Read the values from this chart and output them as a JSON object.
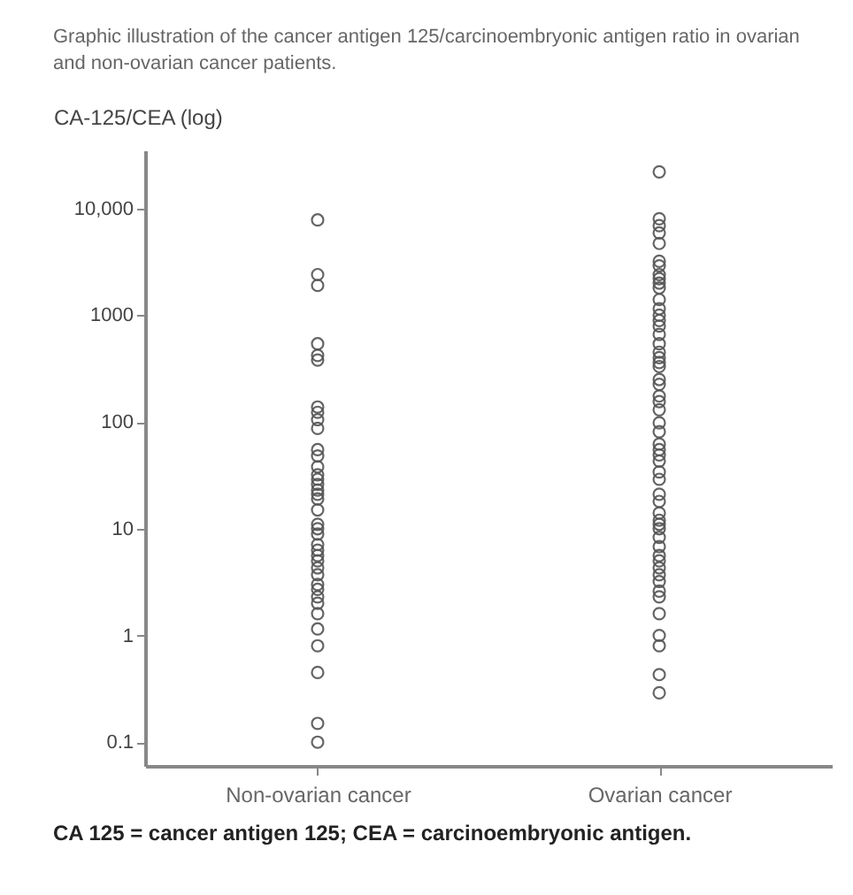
{
  "chart_data": {
    "type": "scatter",
    "title": "Graphic illustration of the cancer antigen 125/carcinoembryonic antigen ratio in ovarian and non-ovarian cancer patients.",
    "ylabel": "CA-125/CEA (log)",
    "annotations": [
      "CA 125 = cancer antigen 125;  CEA = carcinoembryonic antigen."
    ],
    "log": "y",
    "marker": "circle",
    "categories": [
      "Non-ovarian cancer",
      "Ovarian cancer"
    ],
    "ylim": [
      0.06,
      35000
    ],
    "yticks": [
      0.1,
      1,
      10,
      100,
      1000,
      {
        "value": 10000,
        "label": "10,000"
      }
    ],
    "series": [
      {
        "color": "#555555",
        "x": [
          "Non-ovarian cancer",
          "Non-ovarian cancer",
          "Non-ovarian cancer",
          "Non-ovarian cancer",
          "Non-ovarian cancer",
          "Non-ovarian cancer",
          "Non-ovarian cancer",
          "Non-ovarian cancer",
          "Non-ovarian cancer",
          "Non-ovarian cancer",
          "Non-ovarian cancer",
          "Non-ovarian cancer",
          "Non-ovarian cancer",
          "Non-ovarian cancer",
          "Non-ovarian cancer",
          "Non-ovarian cancer",
          "Non-ovarian cancer",
          "Non-ovarian cancer",
          "Non-ovarian cancer",
          "Non-ovarian cancer",
          "Non-ovarian cancer",
          "Non-ovarian cancer",
          "Non-ovarian cancer",
          "Non-ovarian cancer",
          "Non-ovarian cancer",
          "Non-ovarian cancer",
          "Non-ovarian cancer",
          "Non-ovarian cancer",
          "Non-ovarian cancer",
          "Non-ovarian cancer",
          "Non-ovarian cancer",
          "Non-ovarian cancer",
          "Non-ovarian cancer",
          "Non-ovarian cancer",
          "Non-ovarian cancer",
          "Non-ovarian cancer",
          "Non-ovarian cancer",
          "Non-ovarian cancer",
          "Non-ovarian cancer"
        ],
        "values": [
          7800,
          2400,
          1900,
          540,
          420,
          380,
          138,
          123,
          105,
          87,
          55,
          48,
          38,
          32,
          29,
          26,
          23,
          21,
          19,
          15,
          11,
          10,
          8.9,
          7.1,
          6.3,
          5.6,
          5.0,
          4.3,
          3.7,
          3.0,
          2.7,
          2.3,
          2.0,
          1.6,
          1.15,
          0.8,
          0.45,
          0.15,
          0.1
        ]
      },
      {
        "color": "#555555",
        "x": [
          "Ovarian cancer",
          "Ovarian cancer",
          "Ovarian cancer",
          "Ovarian cancer",
          "Ovarian cancer",
          "Ovarian cancer",
          "Ovarian cancer",
          "Ovarian cancer",
          "Ovarian cancer",
          "Ovarian cancer",
          "Ovarian cancer",
          "Ovarian cancer",
          "Ovarian cancer",
          "Ovarian cancer",
          "Ovarian cancer",
          "Ovarian cancer",
          "Ovarian cancer",
          "Ovarian cancer",
          "Ovarian cancer",
          "Ovarian cancer",
          "Ovarian cancer",
          "Ovarian cancer",
          "Ovarian cancer",
          "Ovarian cancer",
          "Ovarian cancer",
          "Ovarian cancer",
          "Ovarian cancer",
          "Ovarian cancer",
          "Ovarian cancer",
          "Ovarian cancer",
          "Ovarian cancer",
          "Ovarian cancer",
          "Ovarian cancer",
          "Ovarian cancer",
          "Ovarian cancer",
          "Ovarian cancer",
          "Ovarian cancer",
          "Ovarian cancer",
          "Ovarian cancer",
          "Ovarian cancer",
          "Ovarian cancer",
          "Ovarian cancer",
          "Ovarian cancer",
          "Ovarian cancer",
          "Ovarian cancer",
          "Ovarian cancer",
          "Ovarian cancer",
          "Ovarian cancer",
          "Ovarian cancer",
          "Ovarian cancer",
          "Ovarian cancer",
          "Ovarian cancer",
          "Ovarian cancer",
          "Ovarian cancer",
          "Ovarian cancer"
        ],
        "values": [
          22000,
          8000,
          6900,
          5900,
          4700,
          3200,
          2900,
          2400,
          2200,
          2000,
          1800,
          1400,
          1150,
          1000,
          890,
          790,
          660,
          540,
          450,
          400,
          360,
          330,
          250,
          225,
          175,
          155,
          130,
          98,
          81,
          62,
          55,
          49,
          43,
          34,
          29,
          21,
          18,
          14,
          12,
          11,
          10,
          8.3,
          6.8,
          5.6,
          5,
          4.3,
          3.7,
          3.2,
          2.6,
          2.3,
          1.6,
          1.0,
          0.8,
          0.43,
          0.29
        ]
      }
    ]
  }
}
